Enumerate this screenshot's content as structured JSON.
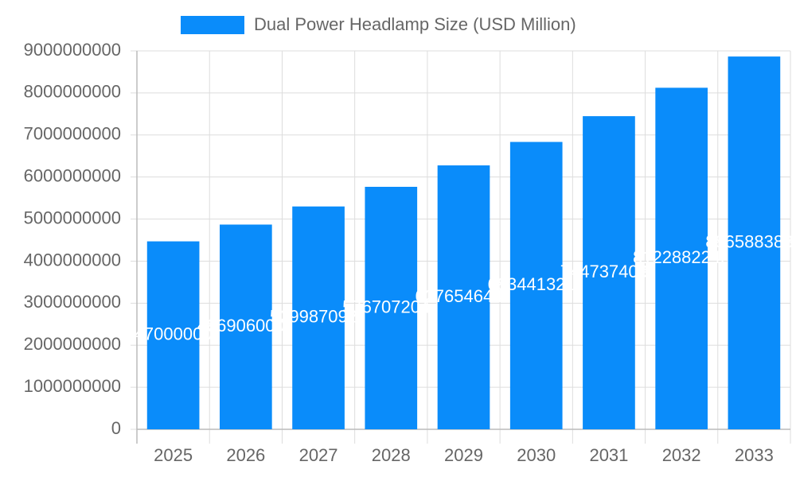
{
  "chart_data": {
    "type": "bar",
    "series": [
      {
        "name": "Dual Power Headlamp Size (USD Million)",
        "color": "#0a8cfa",
        "values": [
          4470000000,
          4869060000,
          5299870920,
          5767072047,
          6276546447,
          6834413215,
          7447374031,
          8122882248,
          8865883880
        ]
      }
    ],
    "categories": [
      "2025",
      "2026",
      "2027",
      "2028",
      "2029",
      "2030",
      "2031",
      "2032",
      "2033"
    ],
    "ylim": [
      0,
      9000000000
    ],
    "yticks": [
      0,
      1000000000,
      2000000000,
      3000000000,
      4000000000,
      5000000000,
      6000000000,
      7000000000,
      8000000000,
      9000000000
    ],
    "grid": true,
    "legend": "top"
  }
}
